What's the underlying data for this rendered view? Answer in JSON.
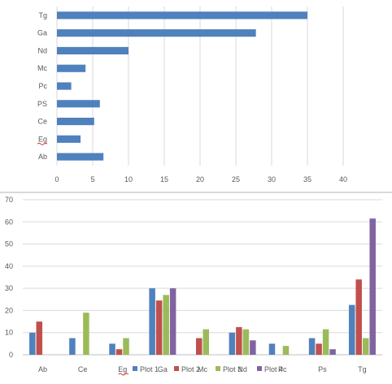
{
  "colors": {
    "bar_chart_1": "#4f81bd",
    "plot1": "#4f81bd",
    "plot2": "#c0504d",
    "plot3": "#9bbb59",
    "plot4": "#8064a2",
    "grid": "#d9d9d9",
    "spell_underline": "#e03030"
  },
  "chart_data": [
    {
      "type": "bar",
      "orientation": "horizontal",
      "categories": [
        "Ab",
        "Eg",
        "Ce",
        "PS",
        "Pc",
        "Mc",
        "Nd",
        "Ga",
        "Tg"
      ],
      "values": [
        6.5,
        3.3,
        5.2,
        6,
        2,
        4,
        10,
        27.8,
        35
      ],
      "xlim": [
        0,
        40
      ],
      "xticks": [
        "0",
        "5",
        "10",
        "15",
        "20",
        "25",
        "30",
        "35",
        "40"
      ],
      "grid": true,
      "legend": "none"
    },
    {
      "type": "bar",
      "orientation": "vertical",
      "categories": [
        "Ab",
        "Ce",
        "Eg",
        "Ga",
        "Mc",
        "Nd",
        "Pc",
        "Ps",
        "Tg"
      ],
      "series": [
        {
          "name": "Plot 1",
          "values": [
            10,
            7.5,
            5,
            30,
            0,
            10,
            5,
            7.5,
            22.5
          ]
        },
        {
          "name": "Plot 2",
          "values": [
            15,
            0,
            2.5,
            24.5,
            7.5,
            12.5,
            0,
            5,
            34
          ]
        },
        {
          "name": "Plot 3",
          "values": [
            0,
            19,
            7.5,
            27,
            11.5,
            11.5,
            4,
            11.5,
            7.5
          ]
        },
        {
          "name": "Plot 4",
          "values": [
            0,
            0,
            0,
            30,
            0,
            6.5,
            0,
            2.5,
            61.5
          ]
        }
      ],
      "ylim": [
        0,
        70
      ],
      "yticks": [
        "0",
        "10",
        "20",
        "30",
        "40",
        "50",
        "60",
        "70"
      ],
      "grid": true,
      "legend": "bottom"
    }
  ]
}
